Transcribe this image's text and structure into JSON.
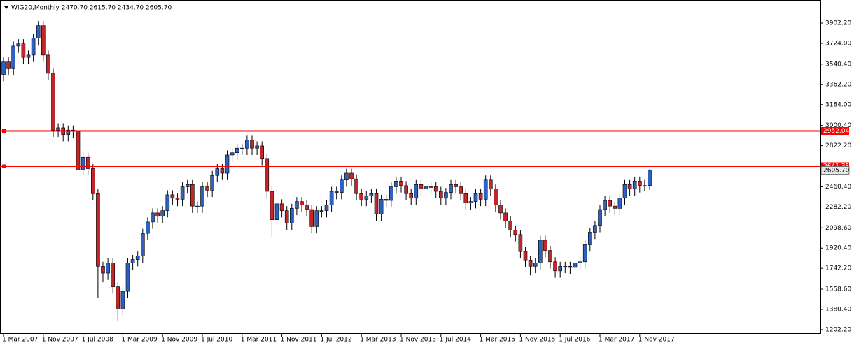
{
  "chart_data": {
    "type": "candlestick",
    "title": "WIG20,Monthly 2470.70 2615.70 2434.70 2605.70",
    "categories": [
      "1 Mar 2007",
      null,
      null,
      null,
      null,
      null,
      null,
      null,
      "1 Nov 2007",
      null,
      null,
      null,
      null,
      null,
      null,
      null,
      "1 Jul 2008",
      null,
      null,
      null,
      null,
      null,
      null,
      null,
      "1 Mar 2009",
      null,
      null,
      null,
      null,
      null,
      null,
      null,
      "1 Nov 2009",
      null,
      null,
      null,
      null,
      null,
      null,
      null,
      "1 Jul 2010",
      null,
      null,
      null,
      null,
      null,
      null,
      null,
      "1 Mar 2011",
      null,
      null,
      null,
      null,
      null,
      null,
      null,
      "1 Nov 2011",
      null,
      null,
      null,
      null,
      null,
      null,
      null,
      "1 Jul 2012",
      null,
      null,
      null,
      null,
      null,
      null,
      null,
      "1 Mar 2013",
      null,
      null,
      null,
      null,
      null,
      null,
      null,
      "1 Nov 2013",
      null,
      null,
      null,
      null,
      null,
      null,
      null,
      "1 Jul 2014",
      null,
      null,
      null,
      null,
      null,
      null,
      null,
      "1 Mar 2015",
      null,
      null,
      null,
      null,
      null,
      null,
      null,
      "1 Nov 2015",
      null,
      null,
      null,
      null,
      null,
      null,
      null,
      "1 Jul 2016",
      null,
      null,
      null,
      null,
      null,
      null,
      null,
      "1 Mar 2017",
      null,
      null,
      null,
      null,
      null,
      null,
      null,
      "1 Nov 2017",
      null,
      null
    ],
    "open": [
      3450,
      3560,
      3500,
      3700,
      3720,
      3600,
      3620,
      3770,
      3880,
      3620,
      3460,
      2960,
      2980,
      2920,
      2960,
      2950,
      2610,
      2720,
      2620,
      2400,
      1760,
      1700,
      1790,
      1580,
      1390,
      1540,
      1790,
      1820,
      1850,
      2050,
      2150,
      2230,
      2200,
      2250,
      2390,
      2360,
      2350,
      2460,
      2480,
      2290,
      2290,
      2460,
      2430,
      2560,
      2620,
      2580,
      2740,
      2760,
      2800,
      2800,
      2870,
      2800,
      2820,
      2710,
      2420,
      2170,
      2310,
      2250,
      2140,
      2270,
      2330,
      2300,
      2260,
      2110,
      2250,
      2250,
      2300,
      2420,
      2410,
      2520,
      2580,
      2530,
      2400,
      2350,
      2380,
      2400,
      2220,
      2350,
      2340,
      2460,
      2510,
      2470,
      2400,
      2360,
      2480,
      2440,
      2460,
      2460,
      2420,
      2360,
      2410,
      2480,
      2460,
      2400,
      2320,
      2330,
      2400,
      2350,
      2520,
      2440,
      2300,
      2230,
      2160,
      2080,
      2040,
      1890,
      1810,
      1760,
      1790,
      1990,
      1900,
      1800,
      1720,
      1760,
      1760,
      1750,
      1790,
      1800,
      1950,
      2060,
      2120,
      2260,
      2340,
      2290,
      2270,
      2360,
      2480,
      2440,
      2510,
      2470,
      2470.7
    ],
    "high": [
      3600,
      3600,
      3740,
      3760,
      3760,
      3660,
      3810,
      3920,
      3920,
      3660,
      3500,
      3020,
      3020,
      3000,
      3000,
      2990,
      2760,
      2760,
      2660,
      2440,
      1800,
      1830,
      1830,
      1620,
      1580,
      1830,
      1860,
      1890,
      2090,
      2190,
      2270,
      2270,
      2290,
      2430,
      2430,
      2400,
      2500,
      2520,
      2520,
      2330,
      2500,
      2500,
      2600,
      2660,
      2660,
      2780,
      2800,
      2840,
      2840,
      2910,
      2910,
      2860,
      2860,
      2750,
      2460,
      2350,
      2350,
      2290,
      2310,
      2370,
      2370,
      2340,
      2300,
      2290,
      2290,
      2340,
      2460,
      2460,
      2560,
      2620,
      2620,
      2570,
      2440,
      2420,
      2440,
      2440,
      2390,
      2390,
      2500,
      2550,
      2550,
      2510,
      2440,
      2520,
      2520,
      2500,
      2500,
      2500,
      2460,
      2450,
      2520,
      2520,
      2500,
      2440,
      2370,
      2440,
      2440,
      2560,
      2560,
      2480,
      2340,
      2270,
      2200,
      2120,
      2080,
      1930,
      1850,
      1830,
      2030,
      2030,
      1940,
      1840,
      1800,
      1800,
      1800,
      1830,
      1840,
      1990,
      2100,
      2160,
      2300,
      2380,
      2380,
      2330,
      2400,
      2520,
      2520,
      2550,
      2550,
      2520,
      2615.7
    ],
    "low": [
      3390,
      3440,
      3440,
      3640,
      3540,
      3540,
      3560,
      3710,
      3560,
      3400,
      2900,
      2900,
      2860,
      2860,
      2890,
      2550,
      2550,
      2560,
      2340,
      1480,
      1620,
      1640,
      1520,
      1280,
      1330,
      1480,
      1730,
      1760,
      1790,
      1990,
      2090,
      2140,
      2140,
      2190,
      2300,
      2290,
      2290,
      2400,
      2230,
      2230,
      2230,
      2370,
      2370,
      2500,
      2520,
      2520,
      2680,
      2700,
      2740,
      2740,
      2740,
      2740,
      2650,
      2360,
      2020,
      2110,
      2190,
      2080,
      2080,
      2210,
      2240,
      2200,
      2050,
      2050,
      2190,
      2190,
      2240,
      2350,
      2350,
      2460,
      2470,
      2340,
      2290,
      2290,
      2320,
      2160,
      2160,
      2280,
      2280,
      2400,
      2410,
      2340,
      2300,
      2300,
      2380,
      2380,
      2400,
      2360,
      2300,
      2300,
      2350,
      2400,
      2340,
      2260,
      2260,
      2270,
      2290,
      2290,
      2380,
      2240,
      2170,
      2100,
      2020,
      1980,
      1830,
      1750,
      1680,
      1700,
      1730,
      1840,
      1740,
      1660,
      1660,
      1700,
      1690,
      1690,
      1730,
      1740,
      1890,
      2000,
      2060,
      2200,
      2230,
      2210,
      2210,
      2300,
      2380,
      2380,
      2410,
      2420,
      2434.7
    ],
    "close": [
      3560,
      3500,
      3700,
      3720,
      3600,
      3620,
      3770,
      3880,
      3620,
      3460,
      2960,
      2980,
      2920,
      2960,
      2950,
      2610,
      2720,
      2620,
      2400,
      1760,
      1700,
      1790,
      1580,
      1390,
      1540,
      1790,
      1820,
      1850,
      2050,
      2150,
      2230,
      2200,
      2250,
      2390,
      2360,
      2350,
      2460,
      2480,
      2290,
      2290,
      2460,
      2430,
      2560,
      2620,
      2580,
      2740,
      2760,
      2800,
      2800,
      2870,
      2800,
      2820,
      2710,
      2420,
      2170,
      2310,
      2250,
      2140,
      2270,
      2330,
      2300,
      2260,
      2110,
      2250,
      2250,
      2300,
      2420,
      2410,
      2520,
      2580,
      2530,
      2400,
      2350,
      2380,
      2400,
      2220,
      2350,
      2340,
      2460,
      2510,
      2470,
      2400,
      2360,
      2480,
      2440,
      2460,
      2460,
      2420,
      2360,
      2410,
      2480,
      2460,
      2400,
      2320,
      2330,
      2400,
      2350,
      2520,
      2440,
      2300,
      2230,
      2160,
      2080,
      2040,
      1890,
      1810,
      1760,
      1790,
      1990,
      1900,
      1800,
      1720,
      1760,
      1760,
      1750,
      1790,
      1800,
      1950,
      2060,
      2120,
      2260,
      2340,
      2290,
      2270,
      2360,
      2480,
      2440,
      2510,
      2470,
      2470.7,
      2605.7
    ],
    "up_color": "#2f62c0",
    "down_color": "#c0262a",
    "ylim": [
      1165.3,
      4105.2
    ],
    "yticks": [
      {
        "value": 3902.2,
        "label": "3902.20"
      },
      {
        "value": 3724,
        "label": "3724.00"
      },
      {
        "value": 3540.4,
        "label": "3540.40"
      },
      {
        "value": 3362.2,
        "label": "3362.20"
      },
      {
        "value": 3184,
        "label": "3184.00"
      },
      {
        "value": 3000.4,
        "label": "3000.40"
      },
      {
        "value": 2822.2,
        "label": "2822.20"
      },
      {
        "value": 2460.4,
        "label": "2460.40"
      },
      {
        "value": 2282.2,
        "label": "2282.20"
      },
      {
        "value": 2098.6,
        "label": "2098.60"
      },
      {
        "value": 1920.4,
        "label": "1920.40"
      },
      {
        "value": 1742.2,
        "label": "1742.20"
      },
      {
        "value": 1558.6,
        "label": "1558.60"
      },
      {
        "value": 1380.4,
        "label": "1380.40"
      },
      {
        "value": 1202.2,
        "label": "1202.20"
      }
    ],
    "levels": [
      {
        "value": 2952.04,
        "label": "2952.04"
      },
      {
        "value": 2641.35,
        "label": "2641.35"
      }
    ],
    "level_color": "#ff0000",
    "current_price": {
      "value": 2605.7,
      "label": "2605.70"
    }
  }
}
